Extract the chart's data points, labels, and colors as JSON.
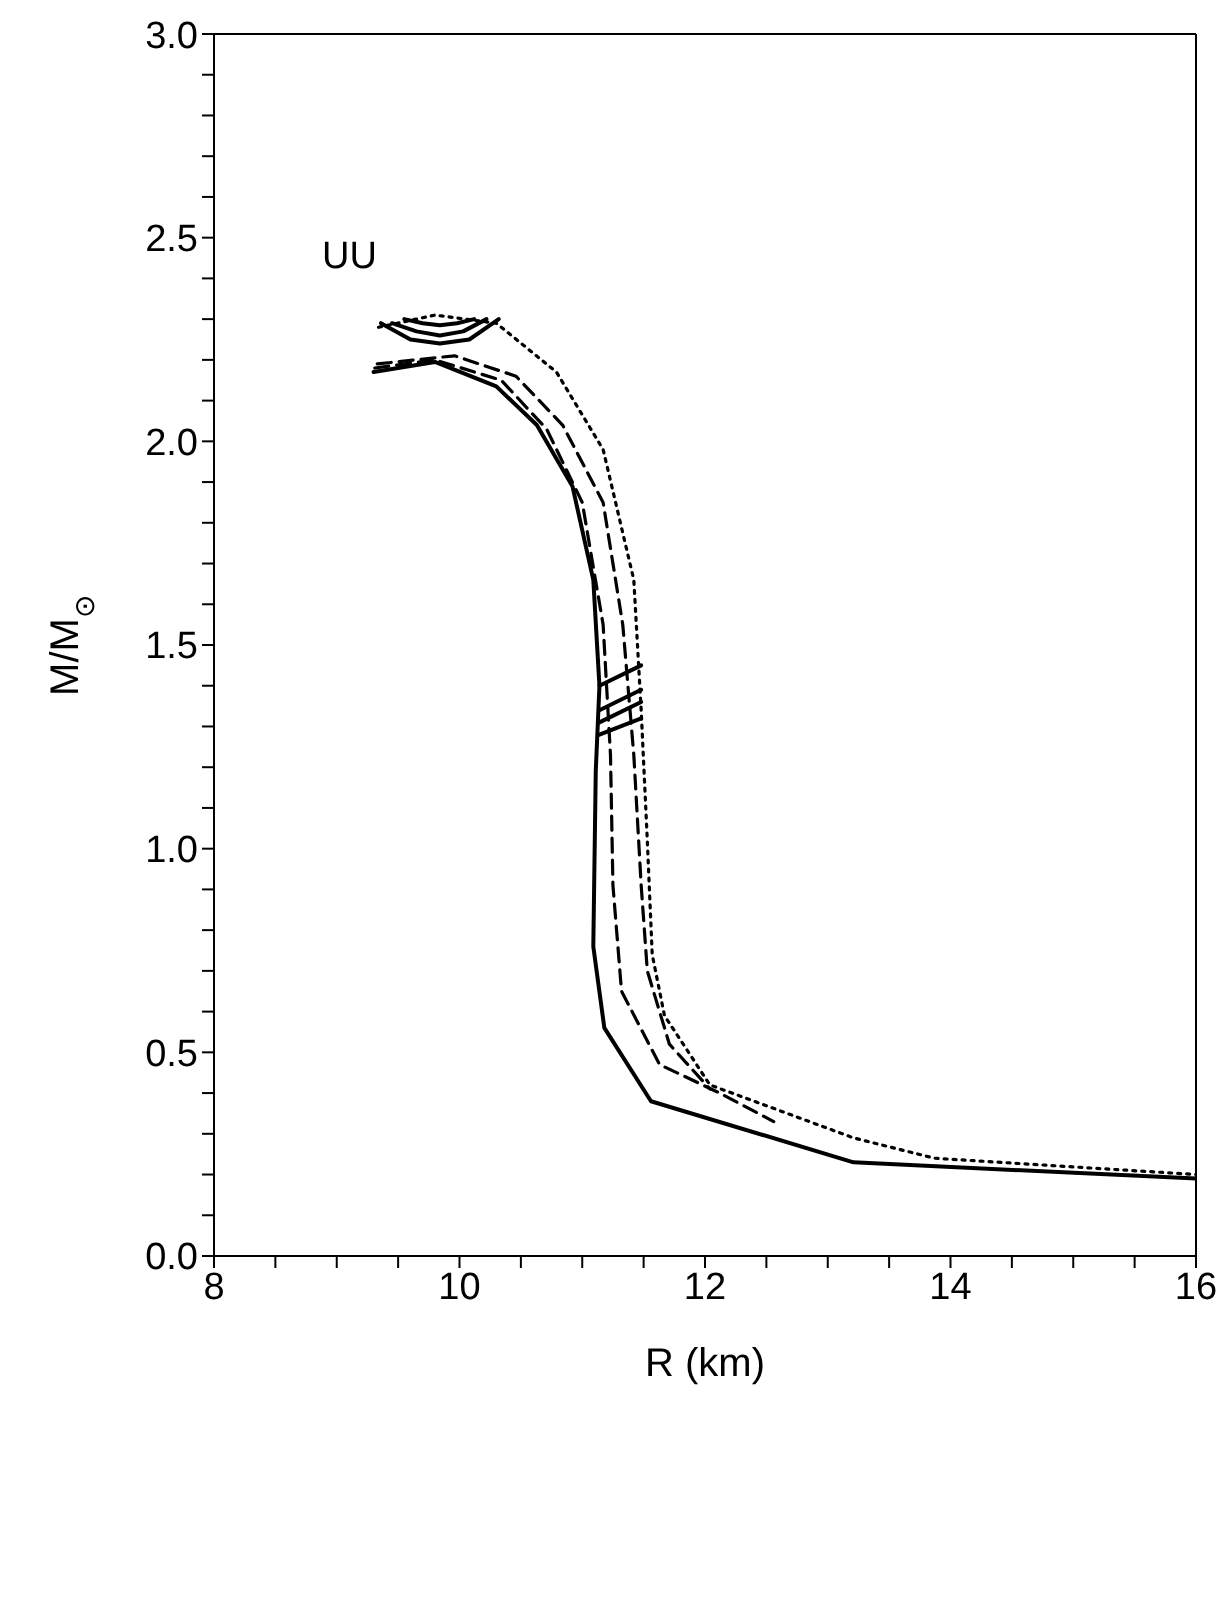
{
  "chart_data": {
    "type": "line",
    "xlabel": "R (km)",
    "ylabel": "M/M$_{⊙}$",
    "annotations": [
      "UU"
    ],
    "xlim": [
      8,
      16
    ],
    "ylim": [
      0,
      3
    ],
    "xticks": [
      8,
      {
        "value": 8.5,
        "label": null
      },
      {
        "value": 9,
        "label": null
      },
      {
        "value": 9.5,
        "label": null
      },
      10,
      {
        "value": 10.5,
        "label": null
      },
      {
        "value": 11,
        "label": null
      },
      {
        "value": 11.5,
        "label": null
      },
      12,
      {
        "value": 12.5,
        "label": null
      },
      {
        "value": 13,
        "label": null
      },
      {
        "value": 13.5,
        "label": null
      },
      14,
      {
        "value": 14.5,
        "label": null
      },
      {
        "value": 15,
        "label": null
      },
      {
        "value": 15.5,
        "label": null
      },
      16
    ],
    "yticks": [
      {
        "value": 0,
        "label": "0.0"
      },
      {
        "value": 0.1,
        "label": null
      },
      {
        "value": 0.2,
        "label": null
      },
      {
        "value": 0.3,
        "label": null
      },
      {
        "value": 0.4,
        "label": null
      },
      {
        "value": 0.5,
        "label": "0.5"
      },
      {
        "value": 0.6,
        "label": null
      },
      {
        "value": 0.7,
        "label": null
      },
      {
        "value": 0.8,
        "label": null
      },
      {
        "value": 0.9,
        "label": null
      },
      {
        "value": 1,
        "label": "1.0"
      },
      {
        "value": 1.1,
        "label": null
      },
      {
        "value": 1.2,
        "label": null
      },
      {
        "value": 1.3,
        "label": null
      },
      {
        "value": 1.4,
        "label": null
      },
      {
        "value": 1.5,
        "label": "1.5"
      },
      {
        "value": 1.6,
        "label": null
      },
      {
        "value": 1.7,
        "label": null
      },
      {
        "value": 1.8,
        "label": null
      },
      {
        "value": 1.9,
        "label": null
      },
      {
        "value": 2,
        "label": "2.0"
      },
      {
        "value": 2.1,
        "label": null
      },
      {
        "value": 2.2,
        "label": null
      },
      {
        "value": 2.3,
        "label": null
      },
      {
        "value": 2.4,
        "label": null
      },
      {
        "value": 2.5,
        "label": "2.5"
      },
      {
        "value": 2.6,
        "label": null
      },
      {
        "value": 2.7,
        "label": null
      },
      {
        "value": 2.8,
        "label": null
      },
      {
        "value": 2.9,
        "label": null
      },
      {
        "value": 3,
        "label": "3.0"
      }
    ],
    "marker": "none",
    "series": [
      {
        "color": "#000000",
        "line_style": "solid",
        "x": [
          9.3,
          9.8,
          10.3,
          10.63,
          10.92,
          11.09,
          11.14,
          11.11,
          11.09,
          11.18,
          11.56,
          13.21,
          16
        ],
        "values": [
          2.17,
          2.195,
          2.135,
          2.04,
          1.89,
          1.66,
          1.4,
          1.19,
          0.76,
          0.56,
          0.38,
          0.23,
          0.19
        ]
      },
      {
        "color": "#000000",
        "line_style": "dashed",
        "x": [
          9.31,
          9.8,
          10.34,
          10.71,
          11.0,
          11.17,
          11.23,
          11.25,
          11.32,
          11.63,
          12.12,
          12.56
        ],
        "values": [
          2.18,
          2.2,
          2.15,
          2.03,
          1.85,
          1.55,
          1.23,
          0.91,
          0.65,
          0.47,
          0.4,
          0.33
        ]
      },
      {
        "color": "#000000",
        "line_style": "dashed",
        "x": [
          9.33,
          9.96,
          10.46,
          10.84,
          11.17,
          11.33,
          11.42,
          11.48,
          11.53,
          11.71,
          12.04
        ],
        "values": [
          2.19,
          2.21,
          2.16,
          2.04,
          1.85,
          1.55,
          1.23,
          0.91,
          0.7,
          0.52,
          0.41
        ]
      },
      {
        "color": "#000000",
        "line_style": "dotted",
        "x": [
          9.34,
          9.8,
          10.3,
          10.79,
          11.17,
          11.42,
          11.48,
          11.53,
          11.57,
          11.67,
          12.04,
          13.21,
          13.87,
          16
        ],
        "values": [
          2.28,
          2.31,
          2.29,
          2.17,
          1.98,
          1.66,
          1.34,
          1.02,
          0.74,
          0.59,
          0.42,
          0.29,
          0.24,
          0.2
        ]
      },
      {
        "color": "#000000",
        "line_style": "solid",
        "x": [
          9.36,
          9.6,
          9.84,
          10.08,
          10.32
        ],
        "values": [
          2.29,
          2.25,
          2.24,
          2.25,
          2.3
        ]
      },
      {
        "color": "#000000",
        "line_style": "solid",
        "x": [
          9.45,
          9.65,
          9.84,
          10.03,
          10.22
        ],
        "values": [
          2.29,
          2.27,
          2.26,
          2.27,
          2.3
        ]
      },
      {
        "color": "#000000",
        "line_style": "solid",
        "x": [
          9.55,
          9.7,
          9.84,
          9.98,
          10.12
        ],
        "values": [
          2.3,
          2.29,
          2.285,
          2.29,
          2.3
        ]
      },
      {
        "color": "#000000",
        "line_style": "solid",
        "x": [
          11.14,
          11.48
        ],
        "values": [
          1.4,
          1.45
        ]
      },
      {
        "color": "#000000",
        "line_style": "solid",
        "x": [
          11.14,
          11.48
        ],
        "values": [
          1.34,
          1.39
        ]
      },
      {
        "color": "#000000",
        "line_style": "solid",
        "x": [
          11.14,
          11.48
        ],
        "values": [
          1.31,
          1.36
        ]
      },
      {
        "color": "#000000",
        "line_style": "solid",
        "x": [
          11.14,
          11.48
        ],
        "values": [
          1.28,
          1.32
        ]
      }
    ]
  }
}
